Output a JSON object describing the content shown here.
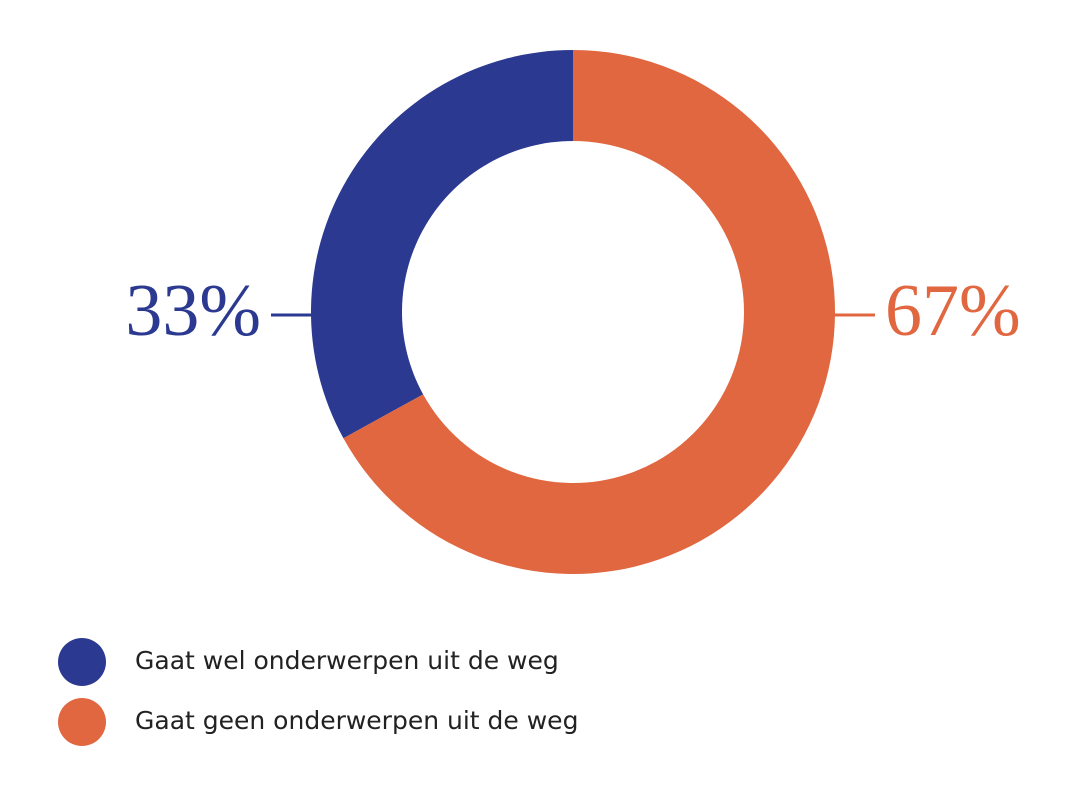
{
  "chart_data": {
    "type": "pie",
    "donut": true,
    "direction": "counterclockwise",
    "categories": [
      "Gaat wel onderwerpen uit de weg",
      "Gaat geen onderwerpen uit de weg"
    ],
    "values": [
      33,
      67
    ],
    "value_labels": [
      "33%",
      "67%"
    ],
    "colors": [
      "#2b3990",
      "#e0673f"
    ]
  }
}
